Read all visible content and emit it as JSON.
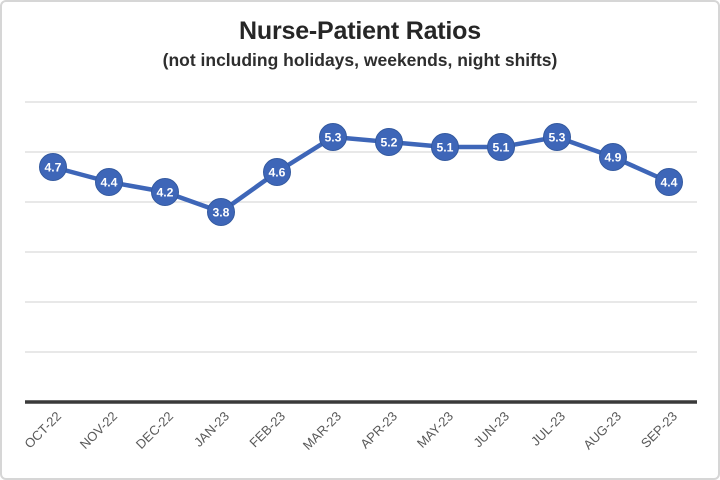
{
  "chart_data": {
    "type": "line",
    "title": "Nurse-Patient Ratios",
    "subtitle": "(not including holidays, weekends, night shifts)",
    "categories": [
      "OCT-22",
      "NOV-22",
      "DEC-22",
      "JAN-23",
      "FEB-23",
      "MAR-23",
      "APR-23",
      "MAY-23",
      "JUN-23",
      "JUL-23",
      "AUG-23",
      "SEP-23"
    ],
    "values": [
      4.7,
      4.4,
      4.2,
      3.8,
      4.6,
      5.3,
      5.2,
      5.1,
      5.1,
      5.3,
      4.9,
      4.4
    ],
    "ylim": [
      0,
      6
    ],
    "gridline_step": 1,
    "grid": "horizontal-major",
    "legend": "none",
    "y_axis_labels": "none",
    "data_labels": "inside-marker",
    "colors": {
      "series": "#3E66B8",
      "marker_edge": "#33599F",
      "data_label": "#FFFFFF",
      "gridline": "#DBDBDB",
      "axis_line": "#3A3A3A",
      "tick_label": "#595959",
      "title": "#262626"
    }
  }
}
